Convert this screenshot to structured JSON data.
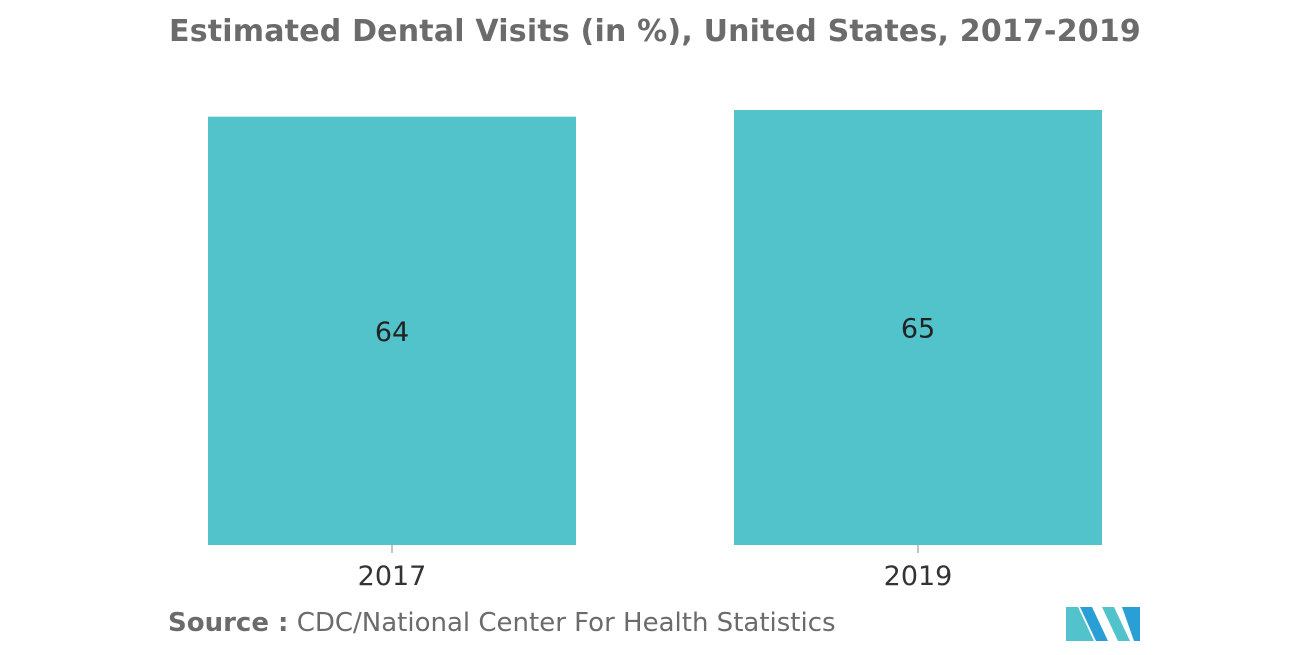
{
  "chart_data": {
    "type": "bar",
    "title": "Estimated Dental Visits (in %), United States, 2017-2019",
    "categories": [
      "2017",
      "2019"
    ],
    "values": [
      64,
      65
    ],
    "data_labels": [
      "64",
      "65"
    ],
    "xlabel": "",
    "ylabel": "",
    "ylim": [
      0,
      65
    ],
    "grid": false,
    "legend": "none",
    "bar_color": "#52c3ca"
  },
  "source": {
    "label": "Source :",
    "text": "CDC/National Center For Health Statistics"
  },
  "logo": {
    "icon": "mordor-intelligence-logo-icon",
    "colors": [
      "#2a9fd6",
      "#52c3ca",
      "#1f6fa8"
    ]
  }
}
